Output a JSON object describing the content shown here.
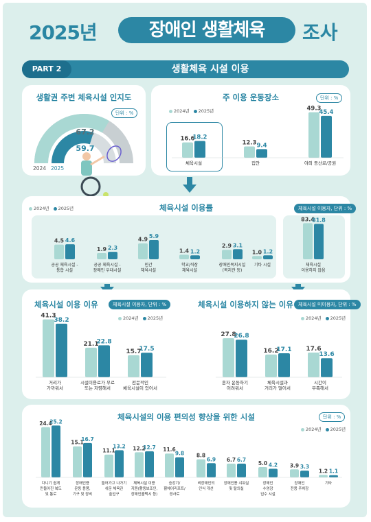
{
  "header": {
    "year": "2025년",
    "pill": "장애인 생활체육",
    "suffix": "조사"
  },
  "part": {
    "tag": "PART 2",
    "title": "생활체육 시설 이용"
  },
  "legend": {
    "prev": "2024년",
    "curr": "2025년"
  },
  "colors": {
    "prev": "#a9d8d3",
    "curr": "#2c87a4",
    "prev_light": "#cfe9e6",
    "curr_dark": "#1f6f8e",
    "accent": "#2a86a3"
  },
  "units": {
    "pct": "단위 : %",
    "users_pct": "체육시설 이용자, 단위 : %",
    "all_pct": "체육시설 이용자, 단위 : %",
    "nonusers_pct": "체육시설 미이용자, 단위 : %"
  },
  "chart_data": [
    {
      "type": "gauge",
      "title": "생활권 주변 체육시설 인지도",
      "unit": "단위 : %",
      "categories": [
        "2024",
        "2025"
      ],
      "values": [
        67.2,
        59.7
      ],
      "ylim": [
        0,
        100
      ]
    },
    {
      "type": "bar",
      "title": "주 이용 운동장소",
      "unit": "단위 : %",
      "categories": [
        "체육시설",
        "집안",
        "야외 등산로/공원"
      ],
      "series": [
        {
          "name": "2024년",
          "values": [
            16.6,
            12.3,
            49.3
          ]
        },
        {
          "name": "2025년",
          "values": [
            18.2,
            9.4,
            45.4
          ]
        }
      ]
    },
    {
      "type": "bar",
      "title": "체육시설 이용률",
      "unit": "체육시설 이용자, 단위 : %",
      "categories": [
        "공공 체육시설 - 통합 시설",
        "공공 체육시설 - 장애인 우대시설",
        "민간 체육시설",
        "학교/직장 체육시설",
        "장애인복지시설 (복지관 등)",
        "기타 시설",
        "체육시설 이용하지 않음"
      ],
      "series": [
        {
          "name": "2024년",
          "values": [
            4.5,
            1.9,
            4.9,
            1.4,
            2.9,
            1.0,
            83.4
          ]
        },
        {
          "name": "2025년",
          "values": [
            4.6,
            2.3,
            5.9,
            1.2,
            3.1,
            1.2,
            81.8
          ]
        }
      ]
    },
    {
      "type": "bar",
      "title": "체육시설 이용 이유",
      "unit": "체육시설 이용자, 단위 : %",
      "categories": [
        "거리가 가까워서",
        "시설이용료가 무료 또는 저렴해서",
        "전문적인 체육시설이 있어서"
      ],
      "series": [
        {
          "name": "2024년",
          "values": [
            41.3,
            21.1,
            15.7
          ]
        },
        {
          "name": "2025년",
          "values": [
            38.2,
            22.8,
            17.5
          ]
        }
      ]
    },
    {
      "type": "bar",
      "title": "체육시설 이용하지 않는 이유",
      "unit": "체육시설 미이용자, 단위 : %",
      "categories": [
        "혼자 운동하기 어려워서",
        "체육시설과 거리가 멀어서",
        "시간이 부족해서"
      ],
      "series": [
        {
          "name": "2024년",
          "values": [
            27.8,
            16.2,
            17.6
          ]
        },
        {
          "name": "2025년",
          "values": [
            26.8,
            17.1,
            13.6
          ]
        }
      ]
    },
    {
      "type": "bar",
      "title": "체육시설의 이용 편의성 향상을 위한 시설",
      "unit": "단위 : %",
      "categories": [
        "다니기 쉽게 만들어진 복도 및 통로",
        "장애인용 운동 용품, 기구 및 장비",
        "들어가고 나가기 쉬운 체육관 출입구",
        "체육시설 이용 지원(활동보조인, 장애인콜택시 등)",
        "승강기/ 휠체어리프트/ 경사로",
        "비장애인의 인식 개선",
        "장애인용 샤워실 및 탈의실",
        "장애인 수영장 입수 시설",
        "장애인 전용 주차장",
        "기타"
      ],
      "series": [
        {
          "name": "2024년",
          "values": [
            24.4,
            15.1,
            11.1,
            12.2,
            11.6,
            8.8,
            6.7,
            5.0,
            3.9,
            1.2
          ]
        },
        {
          "name": "2025년",
          "values": [
            25.2,
            16.7,
            13.2,
            12.7,
            9.8,
            6.9,
            6.7,
            4.2,
            3.3,
            1.1
          ]
        }
      ]
    }
  ]
}
